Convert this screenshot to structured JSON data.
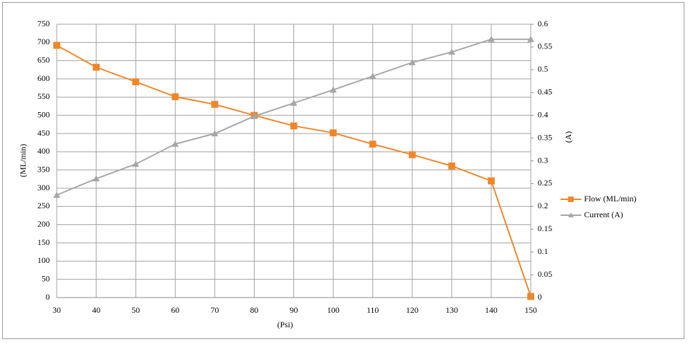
{
  "chart_data": {
    "type": "line",
    "x": [
      30,
      40,
      50,
      60,
      70,
      80,
      90,
      100,
      110,
      120,
      130,
      140,
      150
    ],
    "series": [
      {
        "name": "Flow (ML/min)",
        "color": "#f0862a",
        "marker": "square",
        "values": [
          692,
          632,
          592,
          551,
          530,
          500,
          471,
          452,
          421,
          392,
          361,
          320,
          3
        ]
      },
      {
        "name": "Current (A)",
        "color": "#a6a6a6",
        "marker": "triangle",
        "axis": "y2",
        "values": [
          0.225,
          0.261,
          0.293,
          0.337,
          0.36,
          0.398,
          0.427,
          0.456,
          0.486,
          0.516,
          0.539,
          0.567,
          0.567
        ]
      }
    ],
    "xlabel": "(Psi)",
    "ylabel": "(ML/min)",
    "y2label": "(A)",
    "xlim": [
      30,
      150
    ],
    "xticks": [
      30,
      40,
      50,
      60,
      70,
      80,
      90,
      100,
      110,
      120,
      130,
      140,
      150
    ],
    "ylim": [
      0,
      750
    ],
    "yticks": [
      0,
      50,
      100,
      150,
      200,
      250,
      300,
      350,
      400,
      450,
      500,
      550,
      600,
      650,
      700,
      750
    ],
    "y2lim": [
      0,
      0.6
    ],
    "y2ticks": [
      0,
      0.05,
      0.1,
      0.15,
      0.2,
      0.25,
      0.3,
      0.35,
      0.4,
      0.45,
      0.5,
      0.55,
      0.6
    ],
    "grid": true,
    "legend": "right"
  }
}
